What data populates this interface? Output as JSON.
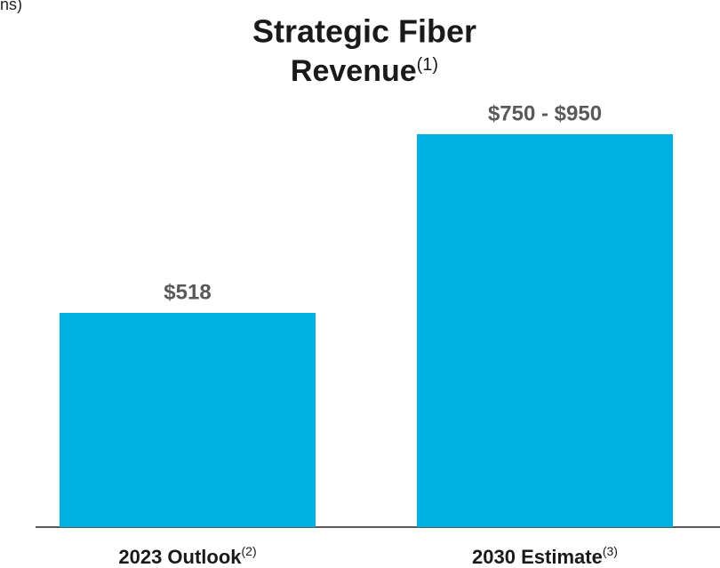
{
  "chart_data": {
    "type": "bar",
    "corner_text": "ns)",
    "title_lines": [
      "Strategic Fiber",
      "Revenue"
    ],
    "title_note": "(1)",
    "categories": [
      "2023 Outlook",
      "2030 Estimate"
    ],
    "category_notes": [
      "(2)",
      "(3)"
    ],
    "values": [
      518,
      950
    ],
    "value_labels": [
      "$518",
      "$750 - $950"
    ],
    "color": "#00b1e1"
  }
}
